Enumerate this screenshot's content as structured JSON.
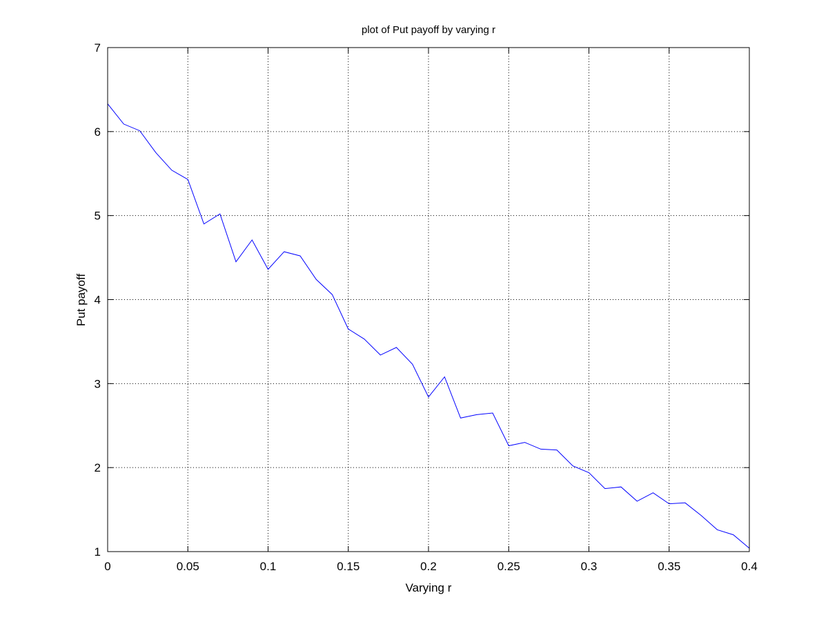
{
  "chart_data": {
    "type": "line",
    "title": "plot of Put payoff by varying r",
    "xlabel": "Varying r",
    "ylabel": "Put payoff",
    "xlim": [
      0,
      0.4
    ],
    "ylim": [
      1,
      7
    ],
    "x_ticks": [
      0,
      0.05,
      0.1,
      0.15,
      0.2,
      0.25,
      0.3,
      0.35,
      0.4
    ],
    "x_tick_labels": [
      "0",
      "0.05",
      "0.1",
      "0.15",
      "0.2",
      "0.25",
      "0.3",
      "0.35",
      "0.4"
    ],
    "y_ticks": [
      1,
      2,
      3,
      4,
      5,
      6,
      7
    ],
    "y_tick_labels": [
      "1",
      "2",
      "3",
      "4",
      "5",
      "6",
      "7"
    ],
    "grid": true,
    "series": [
      {
        "color": "#0000ff",
        "x": [
          0,
          0.01,
          0.02,
          0.03,
          0.04,
          0.05,
          0.06,
          0.07,
          0.08,
          0.09,
          0.1,
          0.11,
          0.12,
          0.13,
          0.14,
          0.15,
          0.16,
          0.17,
          0.18,
          0.19,
          0.2,
          0.21,
          0.22,
          0.23,
          0.24,
          0.25,
          0.26,
          0.27,
          0.28,
          0.29,
          0.3,
          0.31,
          0.32,
          0.33,
          0.34,
          0.35,
          0.36,
          0.37,
          0.38,
          0.39,
          0.4
        ],
        "values": [
          6.33,
          6.09,
          6.01,
          5.75,
          5.54,
          5.43,
          4.9,
          5.02,
          4.45,
          4.71,
          4.36,
          4.57,
          4.52,
          4.24,
          4.06,
          3.65,
          3.53,
          3.34,
          3.43,
          3.23,
          2.84,
          3.08,
          2.59,
          2.63,
          2.65,
          2.26,
          2.3,
          2.22,
          2.21,
          2.02,
          1.94,
          1.75,
          1.77,
          1.6,
          1.7,
          1.57,
          1.58,
          1.43,
          1.26,
          1.2,
          1.04
        ]
      }
    ]
  }
}
